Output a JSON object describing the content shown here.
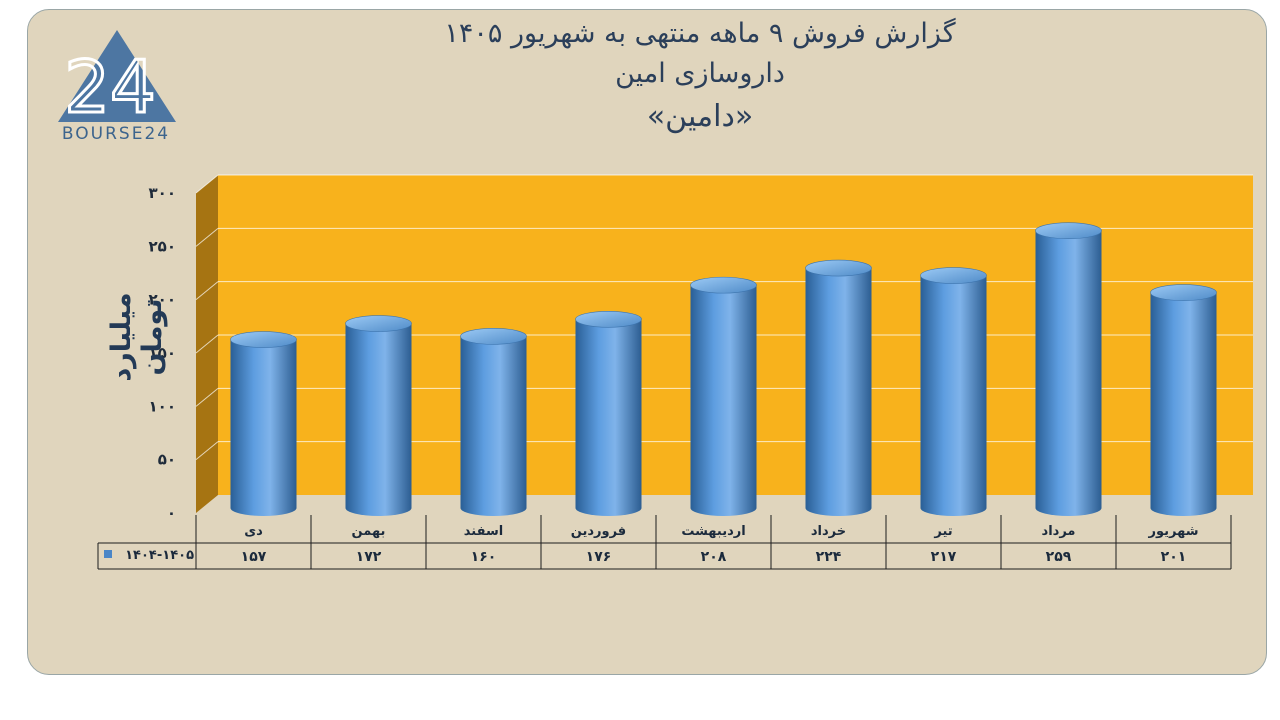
{
  "header": {
    "title_line1": "گزارش  فروش ۹ ماهه منتهی به شهریور ۱۴۰۵",
    "title_line2": "داروسازی امین",
    "title_line3": "«دامین»"
  },
  "logo": {
    "mark": "24",
    "text": "BOURSE24"
  },
  "chart_data": {
    "type": "bar",
    "categories": [
      "دی",
      "بهمن",
      "اسفند",
      "فروردین",
      "اردیبهشت",
      "خرداد",
      "تیر",
      "مرداد",
      "شهریور"
    ],
    "series": [
      {
        "name": "۱۴۰۴-۱۴۰۵",
        "values": [
          157,
          172,
          160,
          176,
          208,
          224,
          217,
          259,
          201
        ],
        "value_labels": [
          "۱۵۷",
          "۱۷۲",
          "۱۶۰",
          "۱۷۶",
          "۲۰۸",
          "۲۲۴",
          "۲۱۷",
          "۲۵۹",
          "۲۰۱"
        ]
      }
    ],
    "ylabel": "میلیارد تومان",
    "ylim": [
      0,
      300
    ],
    "yticks": [
      0,
      50,
      100,
      150,
      200,
      250,
      300
    ],
    "ytick_labels": [
      "۰",
      "۵۰",
      "۱۰۰",
      "۱۵۰",
      "۲۰۰",
      "۲۵۰",
      "۳۰۰"
    ],
    "grid": true,
    "legend": "data-table",
    "colors": {
      "wall": "#f8b21c",
      "side_wall": "#a87412",
      "bar": "#4f8fd0",
      "bar_dark": "#2a5f96",
      "bar_light": "#8fc0f0",
      "series_key": "#4a86c7"
    }
  }
}
